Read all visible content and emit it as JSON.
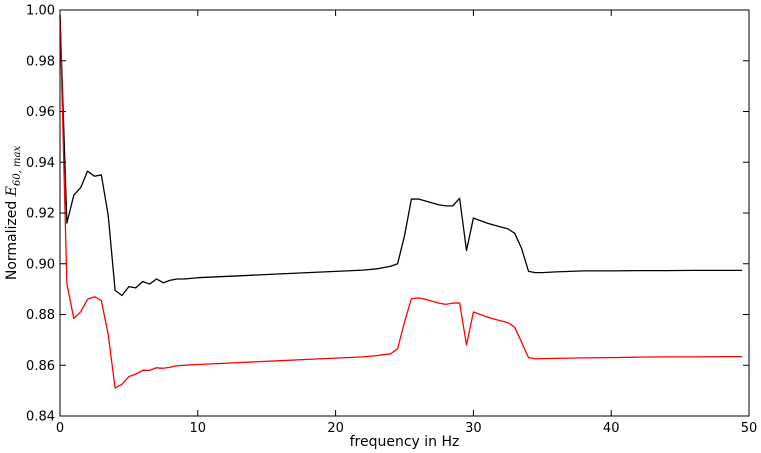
{
  "chart_data": {
    "type": "line",
    "xlabel": "frequency in Hz",
    "ylabel_text": "Normalized ",
    "ylabel_math": {
      "base": "E",
      "subscript": "60, max"
    },
    "xlim": [
      0,
      50
    ],
    "ylim": [
      0.84,
      1.0
    ],
    "xticks": [
      0,
      10,
      20,
      30,
      40,
      50
    ],
    "xtick_labels": [
      "0",
      "10",
      "20",
      "30",
      "40",
      "50"
    ],
    "yticks": [
      0.84,
      0.86,
      0.88,
      0.9,
      0.92,
      0.94,
      0.96,
      0.98,
      1.0
    ],
    "ytick_labels": [
      "0.84",
      "0.86",
      "0.88",
      "0.90",
      "0.92",
      "0.94",
      "0.96",
      "0.98",
      "1.00"
    ],
    "grid": false,
    "series": [
      {
        "color": "#000000",
        "x": [
          0,
          0.5,
          1,
          1.5,
          2,
          2.5,
          3,
          3.5,
          4,
          4.5,
          5,
          5.5,
          6,
          6.5,
          7,
          7.5,
          8,
          8.5,
          9,
          10,
          12,
          14,
          16,
          18,
          20,
          22,
          23,
          24,
          24.5,
          25,
          25.5,
          26,
          26.5,
          27,
          27.5,
          28,
          28.5,
          29,
          29.5,
          30,
          30.5,
          31,
          31.5,
          32,
          32.5,
          33,
          33.5,
          34,
          34.5,
          35,
          36,
          38,
          40,
          42,
          44,
          46,
          48,
          49.5
        ],
        "y": [
          0.998,
          0.916,
          0.927,
          0.93,
          0.9365,
          0.9345,
          0.935,
          0.919,
          0.8895,
          0.8875,
          0.891,
          0.8905,
          0.893,
          0.892,
          0.894,
          0.8925,
          0.8935,
          0.894,
          0.894,
          0.8945,
          0.895,
          0.8955,
          0.896,
          0.8965,
          0.897,
          0.8975,
          0.898,
          0.899,
          0.9,
          0.911,
          0.9255,
          0.9255,
          0.9248,
          0.924,
          0.9232,
          0.9228,
          0.9228,
          0.9258,
          0.9052,
          0.918,
          0.917,
          0.916,
          0.9152,
          0.9145,
          0.9138,
          0.912,
          0.906,
          0.897,
          0.8965,
          0.8965,
          0.8968,
          0.8972,
          0.8972,
          0.8973,
          0.8973,
          0.8974,
          0.8974,
          0.8974
        ]
      },
      {
        "color": "#ff0000",
        "x": [
          0,
          0.5,
          1,
          1.5,
          2,
          2.5,
          3,
          3.5,
          4,
          4.5,
          5,
          5.5,
          6,
          6.5,
          7,
          7.5,
          8,
          8.5,
          9,
          10,
          12,
          14,
          16,
          18,
          20,
          22,
          23,
          24,
          24.5,
          25,
          25.5,
          26,
          26.5,
          27,
          27.5,
          28,
          28.5,
          29,
          29.5,
          30,
          30.5,
          31,
          31.5,
          32,
          32.5,
          33,
          33.5,
          34,
          34.5,
          35,
          36,
          38,
          40,
          42,
          44,
          46,
          48,
          49.5
        ],
        "y": [
          0.998,
          0.892,
          0.8785,
          0.881,
          0.886,
          0.887,
          0.8855,
          0.872,
          0.851,
          0.8525,
          0.8555,
          0.8565,
          0.858,
          0.858,
          0.859,
          0.8588,
          0.8592,
          0.8598,
          0.86,
          0.8603,
          0.8608,
          0.8613,
          0.8618,
          0.8623,
          0.8628,
          0.8633,
          0.8638,
          0.8645,
          0.8665,
          0.877,
          0.8862,
          0.8865,
          0.886,
          0.8852,
          0.8845,
          0.884,
          0.8845,
          0.8845,
          0.868,
          0.881,
          0.88,
          0.879,
          0.8782,
          0.8775,
          0.8768,
          0.875,
          0.869,
          0.863,
          0.8625,
          0.8626,
          0.8627,
          0.8629,
          0.863,
          0.8632,
          0.8633,
          0.8633,
          0.8634,
          0.8634
        ]
      }
    ]
  }
}
